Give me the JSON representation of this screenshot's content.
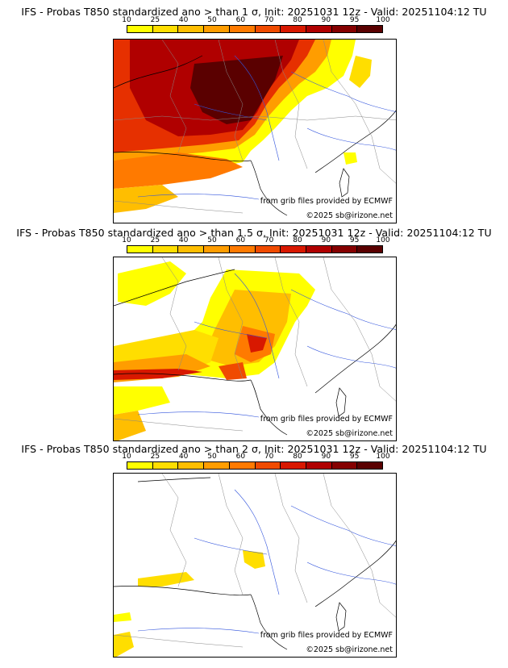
{
  "panels": [
    {
      "title": "IFS - Probas T850  standardized ano > than 1 σ, Init: 20251031 12z - Valid: 20251104:12 TU",
      "threshold": "1 σ"
    },
    {
      "title": "IFS - Probas T850  standardized ano > than 1.5 σ, Init: 20251031 12z - Valid: 20251104:12 TU",
      "threshold": "1.5 σ"
    },
    {
      "title": "IFS - Probas T850  standardized ano > than 2 σ, Init: 20251031 12z - Valid: 20251104:12 TU",
      "threshold": "2 σ"
    }
  ],
  "colorbar": {
    "ticks": [
      "10",
      "25",
      "40",
      "50",
      "60",
      "70",
      "80",
      "90",
      "95",
      "100"
    ],
    "colors": [
      "#ffff00",
      "#ffde00",
      "#ffbe00",
      "#ff9d00",
      "#ff7a00",
      "#f04b00",
      "#d81800",
      "#b00000",
      "#850000",
      "#5a0000"
    ]
  },
  "credits": {
    "source": "from grib files provided by ECMWF",
    "copyright": "©2025 sb@irizone.net"
  }
}
